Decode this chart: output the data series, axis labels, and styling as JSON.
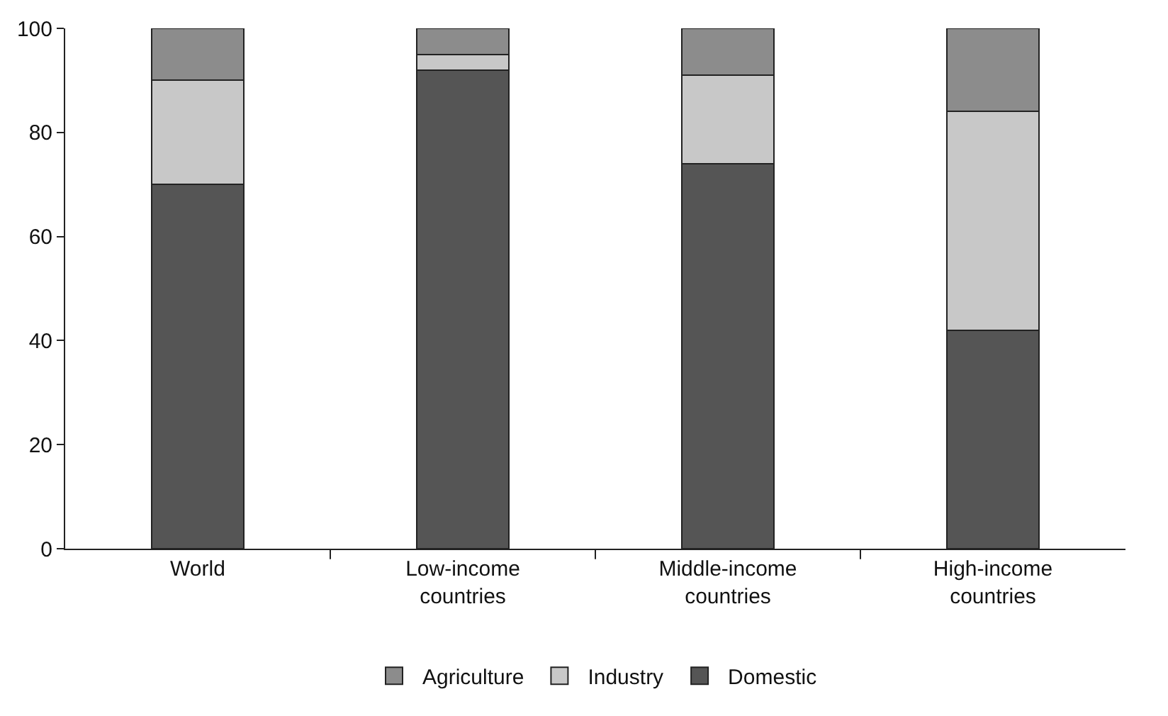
{
  "chart_data": {
    "type": "bar",
    "stacked": true,
    "categories": [
      "World",
      "Low-income countries",
      "Middle-income countries",
      "High-income countries"
    ],
    "series": [
      {
        "name": "Domestic",
        "color": "#555555",
        "values": [
          70,
          92,
          74,
          42
        ]
      },
      {
        "name": "Industry",
        "color": "#c8c8c8",
        "values": [
          20,
          3,
          17,
          42
        ]
      },
      {
        "name": "Agriculture",
        "color": "#8c8c8c",
        "values": [
          10,
          5,
          9,
          16
        ]
      }
    ],
    "ylim": [
      0,
      100
    ],
    "yticks": [
      0,
      20,
      40,
      60,
      80,
      100
    ],
    "grid": false,
    "legend": "bottom"
  }
}
